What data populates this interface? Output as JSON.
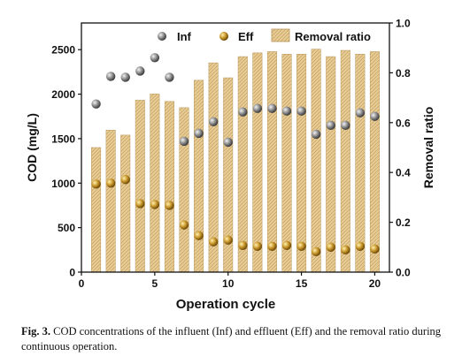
{
  "caption": {
    "label": "Fig. 3.",
    "text": "COD concentrations of the influent (Inf) and effluent (Eff) and the removal ratio during continuous operation."
  },
  "chart_data": {
    "type": "bar",
    "xlabel": "Operation cycle",
    "ylabel": "COD (mg/L)",
    "y2label": "Removal ratio",
    "xlim": [
      0,
      21
    ],
    "ylim": [
      0,
      2800
    ],
    "y2lim": [
      0,
      1.0
    ],
    "xticks": [
      0,
      5,
      10,
      15,
      20
    ],
    "yticks": [
      0,
      500,
      1000,
      1500,
      2000,
      2500
    ],
    "y2ticks": [
      0.0,
      0.2,
      0.4,
      0.6,
      0.8,
      1.0
    ],
    "legend": {
      "placement": "top",
      "entries": [
        "Inf",
        "Eff",
        "Removal ratio"
      ]
    },
    "x": [
      1,
      2,
      3,
      4,
      5,
      6,
      7,
      8,
      9,
      10,
      11,
      12,
      13,
      14,
      15,
      16,
      17,
      18,
      19,
      20
    ],
    "series": [
      {
        "name": "Inf",
        "kind": "scatter",
        "axis": "left",
        "color": "#8a8a8a",
        "values": [
          1890,
          2200,
          2190,
          2260,
          2410,
          2190,
          1470,
          1560,
          1690,
          1460,
          1800,
          1840,
          1840,
          1810,
          1810,
          1550,
          1650,
          1650,
          1790,
          1750
        ]
      },
      {
        "name": "Eff",
        "kind": "scatter",
        "axis": "left",
        "color": "#b8860b",
        "values": [
          990,
          1000,
          1040,
          770,
          760,
          750,
          530,
          410,
          340,
          360,
          300,
          290,
          290,
          300,
          290,
          230,
          280,
          250,
          290,
          260
        ]
      },
      {
        "name": "Removal ratio",
        "kind": "bar",
        "axis": "right",
        "color": "#e3c48a",
        "values": [
          0.5,
          0.57,
          0.55,
          0.69,
          0.715,
          0.685,
          0.66,
          0.77,
          0.84,
          0.78,
          0.865,
          0.88,
          0.885,
          0.875,
          0.875,
          0.895,
          0.865,
          0.89,
          0.875,
          0.885
        ]
      }
    ]
  }
}
